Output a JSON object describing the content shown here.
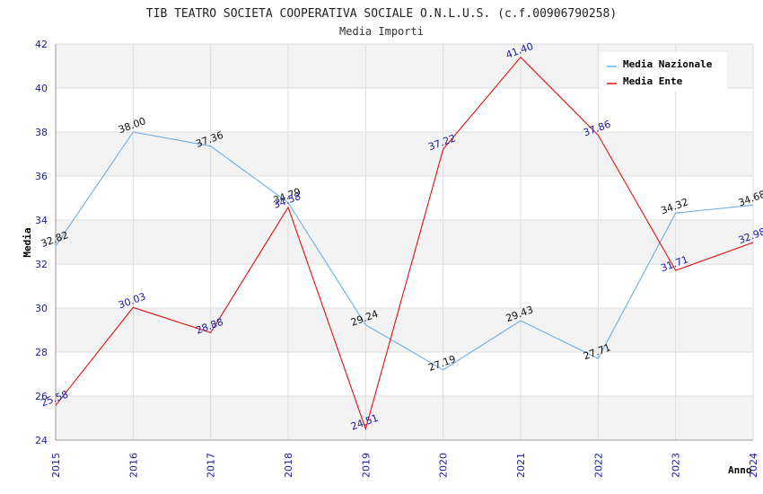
{
  "chart_data": {
    "type": "line",
    "title": "TIB TEATRO SOCIETA COOPERATIVA SOCIALE O.N.L.U.S. (c.f.00906790258)",
    "subtitle": "Media Importi",
    "xlabel": "Anno",
    "ylabel": "Media",
    "categories": [
      "2015",
      "2016",
      "2017",
      "2018",
      "2019",
      "2020",
      "2021",
      "2022",
      "2023",
      "2024"
    ],
    "yticks": [
      24,
      26,
      28,
      30,
      32,
      34,
      36,
      38,
      40,
      42
    ],
    "ylim": [
      24,
      42
    ],
    "grid": true,
    "legend_position": "top-right",
    "series": [
      {
        "name": "Media Nazionale",
        "color": "#6aaee8",
        "label_color": "#111111",
        "values": [
          32.82,
          38.0,
          37.36,
          34.79,
          29.24,
          27.19,
          29.43,
          27.71,
          34.32,
          34.68
        ],
        "labels": [
          "32.82",
          "38.00",
          "37.36",
          "34.79",
          "29.24",
          "27.19",
          "29.43",
          "27.71",
          "34.32",
          "34.68"
        ]
      },
      {
        "name": "Media Ente",
        "color": "#e01010",
        "label_color": "#1a1aa6",
        "values": [
          25.58,
          30.03,
          28.88,
          34.58,
          24.51,
          37.22,
          41.4,
          37.86,
          31.71,
          32.98
        ],
        "labels": [
          "25.58",
          "30.03",
          "28.88",
          "34.58",
          "24.51",
          "37.22",
          "41.40",
          "37.86",
          "31.71",
          "32.98"
        ]
      }
    ]
  }
}
